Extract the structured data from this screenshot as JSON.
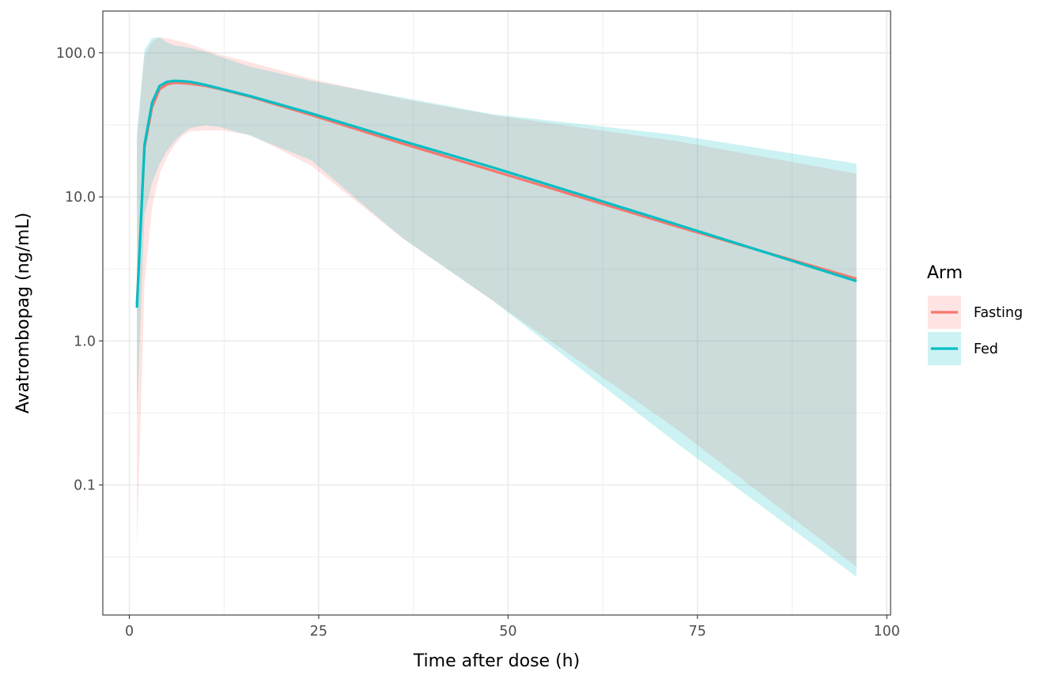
{
  "chart_data": {
    "type": "line",
    "title": "",
    "xlabel": "Time after dose (h)",
    "ylabel": "Avatrombopag (ng/mL)",
    "x_scale": "linear",
    "y_scale": "log10",
    "xlim": [
      -3.5,
      100.5
    ],
    "ylim": [
      0.0125,
      195
    ],
    "x_ticks": [
      0,
      25,
      50,
      75,
      100
    ],
    "x_tick_labels": [
      "0",
      "25",
      "50",
      "75",
      "100"
    ],
    "y_ticks": [
      0.1,
      1,
      10,
      100
    ],
    "y_tick_labels": [
      "0.1",
      "1.0",
      "10.0",
      "100.0"
    ],
    "grid": true,
    "legend": {
      "title": "Arm",
      "position": "right"
    },
    "series": [
      {
        "name": "Fasting",
        "color": "#F8766D",
        "fill": "#FFE0DE",
        "x": [
          1,
          2,
          3,
          4,
          5,
          6,
          7,
          8,
          10,
          12,
          16,
          24,
          36,
          48,
          72,
          96
        ],
        "y": [
          1.8,
          22,
          42,
          56,
          60.5,
          62,
          61.5,
          61,
          59,
          56,
          49.5,
          37,
          23.5,
          15.2,
          6.3,
          2.7
        ],
        "lower": [
          0.036,
          2.5,
          8.5,
          14.5,
          19,
          23,
          26.5,
          28.5,
          29,
          29,
          27,
          16.5,
          5.2,
          1.9,
          0.25,
          0.027
        ],
        "upper": [
          25,
          95,
          120,
          128,
          126,
          123,
          119,
          115,
          105,
          97,
          86,
          66,
          48,
          37,
          24.5,
          14.5
        ]
      },
      {
        "name": "Fed",
        "color": "#00BFC4",
        "fill": "#C9F1F2",
        "x": [
          1,
          2,
          3,
          4,
          5,
          6,
          7,
          8,
          10,
          12,
          16,
          24,
          36,
          48,
          72,
          96
        ],
        "y": [
          1.7,
          23,
          45,
          59,
          63,
          64,
          63.5,
          63,
          60,
          56.5,
          50,
          38,
          24.5,
          16,
          6.5,
          2.6
        ],
        "lower": [
          0.3,
          7.5,
          12.5,
          17,
          21,
          24.5,
          27.5,
          30,
          31.5,
          30.5,
          26.5,
          18,
          5.2,
          1.9,
          0.2,
          0.023
        ],
        "upper": [
          28,
          105,
          127,
          128,
          118,
          112,
          111,
          108,
          102,
          94,
          80,
          64,
          49,
          37.5,
          27,
          17
        ]
      }
    ]
  }
}
